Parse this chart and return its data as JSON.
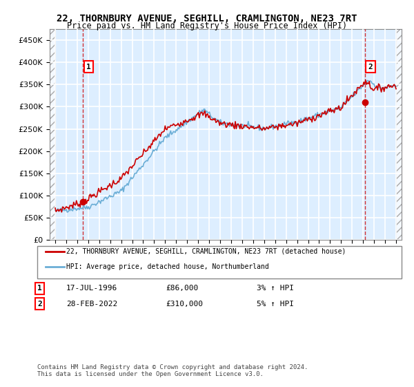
{
  "title": "22, THORNBURY AVENUE, SEGHILL, CRAMLINGTON, NE23 7RT",
  "subtitle": "Price paid vs. HM Land Registry's House Price Index (HPI)",
  "legend_line1": "22, THORNBURY AVENUE, SEGHILL, CRAMLINGTON, NE23 7RT (detached house)",
  "legend_line2": "HPI: Average price, detached house, Northumberland",
  "annotation1_date": "17-JUL-1996",
  "annotation1_price": "£86,000",
  "annotation1_hpi": "3% ↑ HPI",
  "annotation2_date": "28-FEB-2022",
  "annotation2_price": "£310,000",
  "annotation2_hpi": "5% ↑ HPI",
  "footnote": "Contains HM Land Registry data © Crown copyright and database right 2024.\nThis data is licensed under the Open Government Licence v3.0.",
  "hpi_color": "#6baed6",
  "price_color": "#cc0000",
  "background_color": "#ddeeff",
  "hatch_color": "#aaaaaa",
  "grid_color": "#ffffff",
  "ylim": [
    0,
    475000
  ],
  "yticks": [
    0,
    50000,
    100000,
    150000,
    200000,
    250000,
    300000,
    350000,
    400000,
    450000
  ],
  "sale1_x": 1996.54,
  "sale1_y": 86000,
  "sale2_x": 2022.16,
  "sale2_y": 310000,
  "xmin": 1993.5,
  "xmax": 2025.5
}
